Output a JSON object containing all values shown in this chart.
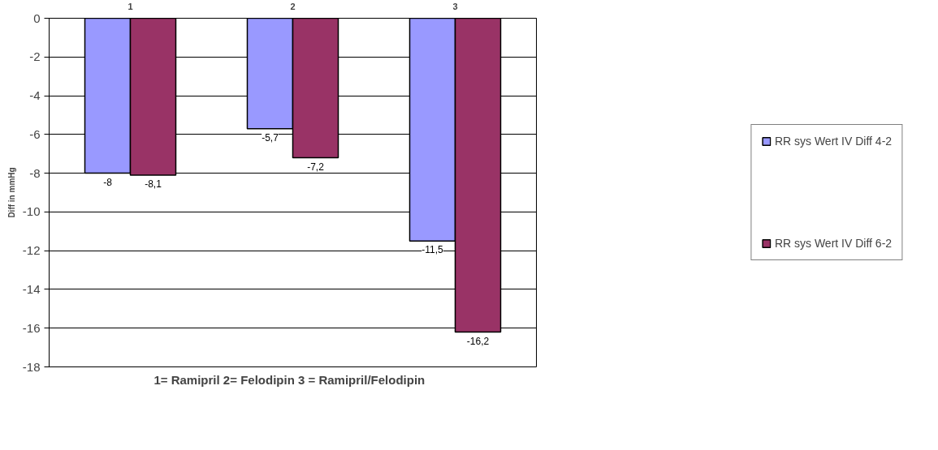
{
  "chart_data": {
    "type": "bar",
    "xlabel": "1= Ramipril   2= Felodipin 3 = Ramipril/Felodipin",
    "ylabel": "Diff in mmHg",
    "categories": [
      "1",
      "2",
      "3"
    ],
    "series": [
      {
        "name": "RR sys Wert IV Diff 4-2",
        "color": "#9999ff",
        "values": [
          -8,
          -5.7,
          -11.5
        ],
        "value_labels": [
          "-8",
          "-5,7",
          "-11,5"
        ]
      },
      {
        "name": "RR sys Wert IV Diff 6-2",
        "color": "#993366",
        "values": [
          -8.1,
          -7.2,
          -16.2
        ],
        "value_labels": [
          "-8,1",
          "-7,2",
          "-16,2"
        ]
      }
    ],
    "ylim": [
      -18,
      0
    ],
    "yticks": [
      -18,
      -16,
      -14,
      -12,
      -10,
      -8,
      -6,
      -4,
      -2,
      0
    ],
    "grid": "y",
    "legend": "right"
  }
}
